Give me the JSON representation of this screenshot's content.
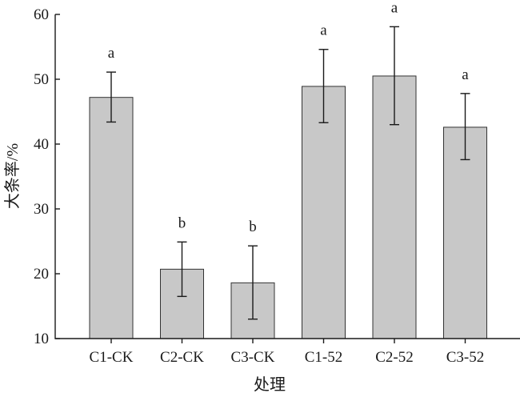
{
  "chart_data": {
    "type": "bar",
    "title": "",
    "xlabel": "处理",
    "ylabel": "大条率/%",
    "ylim": [
      10,
      60
    ],
    "yticks": [
      10,
      20,
      30,
      40,
      50,
      60
    ],
    "grid": false,
    "categories": [
      "C1-CK",
      "C2-CK",
      "C3-CK",
      "C1-52",
      "C2-52",
      "C3-52"
    ],
    "values": [
      47.2,
      20.7,
      18.6,
      48.9,
      50.5,
      42.6
    ],
    "error_bars": [
      {
        "low": 43.4,
        "high": 51.1
      },
      {
        "low": 16.5,
        "high": 24.9
      },
      {
        "low": 13.0,
        "high": 24.3
      },
      {
        "low": 43.3,
        "high": 54.6
      },
      {
        "low": 43.0,
        "high": 58.1
      },
      {
        "low": 37.6,
        "high": 47.8
      }
    ],
    "significance_labels": [
      "a",
      "b",
      "b",
      "a",
      "a",
      "a"
    ],
    "colors": {
      "bar_fill": "#c8c8c8",
      "bar_stroke": "#333333",
      "axis": "#1a1a1a"
    }
  }
}
